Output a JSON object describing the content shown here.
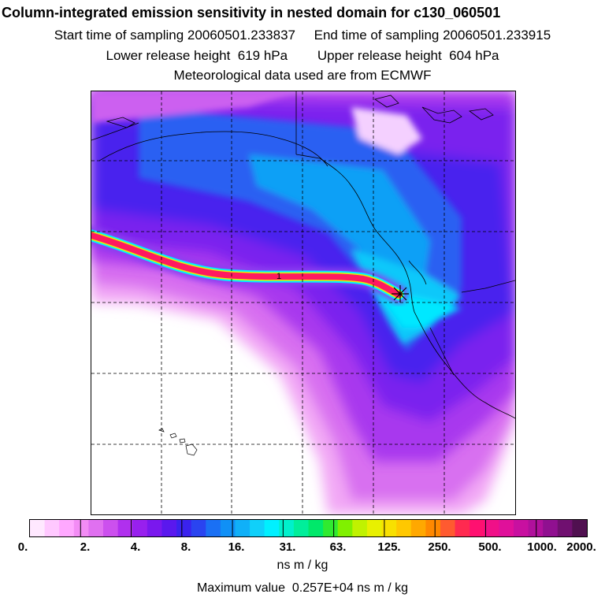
{
  "header": {
    "title": "Column-integrated emission sensitivity in nested domain for c130_060501",
    "sampling": "Start time of sampling 20060501.233837     End time of sampling 20060501.233915",
    "release": "Lower release height  619 hPa        Upper release height  604 hPa",
    "met": "Meteorological data used are from ECMWF"
  },
  "map": {
    "source_label": "1"
  },
  "colorbar": {
    "colors": [
      "#ffe8ff",
      "#ffc8ff",
      "#ffa8ff",
      "#f38cf5",
      "#e070f0",
      "#cc50ee",
      "#b030ee",
      "#9820ee",
      "#7a18ee",
      "#5a18ee",
      "#3a22ee",
      "#2a44f0",
      "#1a70f4",
      "#1090f6",
      "#10b0f8",
      "#10d0fa",
      "#00f0ff",
      "#00f0cc",
      "#00ee9a",
      "#00e86a",
      "#30ea30",
      "#80f000",
      "#c0f200",
      "#e8f000",
      "#f8e000",
      "#ffc800",
      "#ffa800",
      "#ff8800",
      "#ff5a30",
      "#ff2a50",
      "#ff1070",
      "#f01088",
      "#e0109a",
      "#c810a0",
      "#b0109c",
      "#901090",
      "#701070",
      "#501050"
    ],
    "ticks": [
      "0.",
      "2.",
      "4.",
      "8.",
      "16.",
      "31.",
      "63.",
      "125.",
      "250.",
      "500.",
      "1000.",
      "2000."
    ]
  },
  "units": "ns m / kg",
  "max_value": "Maximum value  0.257E+04 ns m / kg"
}
